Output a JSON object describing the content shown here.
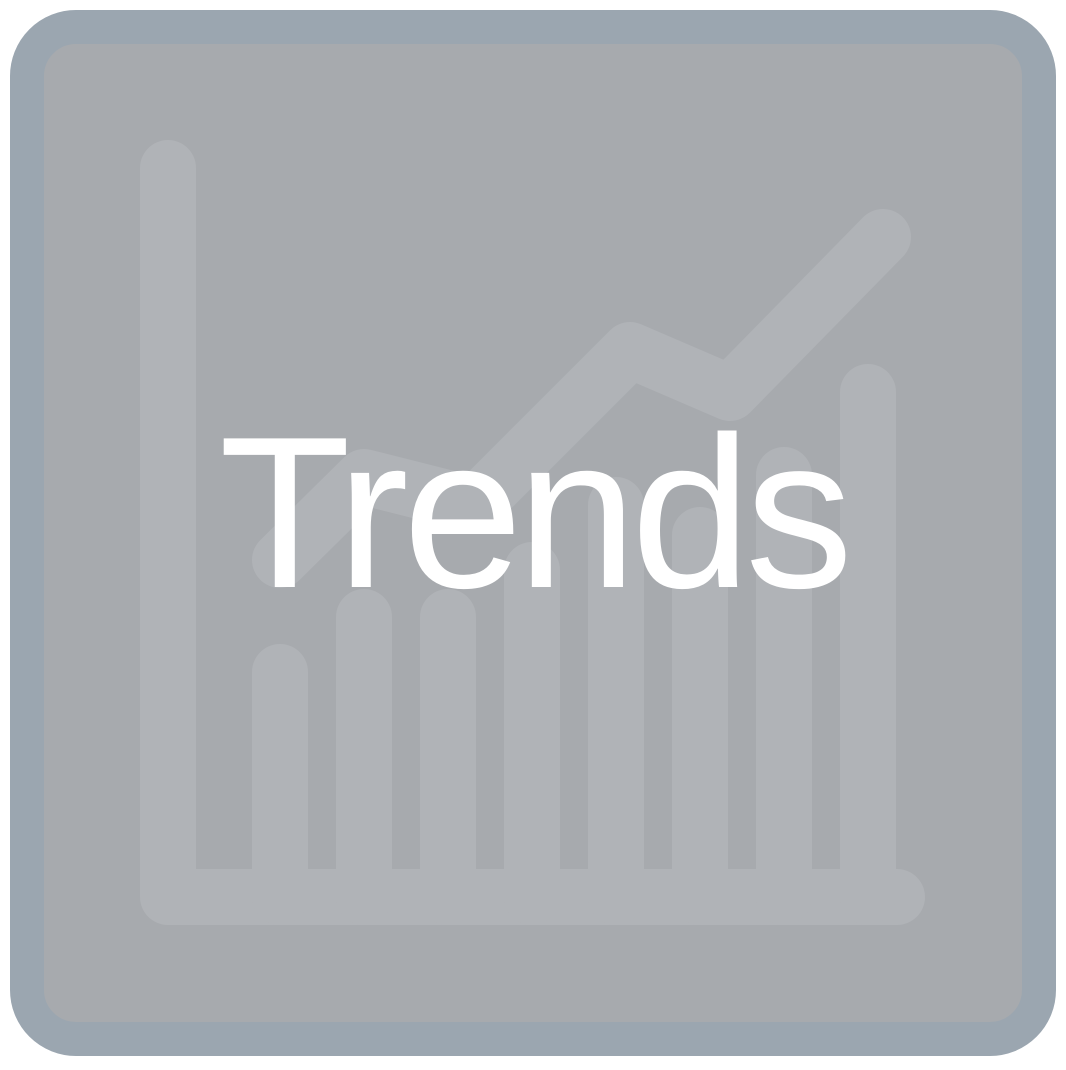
{
  "tile": {
    "label": "Trends",
    "icon": "trend-chart-icon",
    "colors": {
      "frame": "#9ba6b0",
      "fill": "#a7aaae",
      "graphic": "#b0b3b7",
      "text": "#ffffff"
    }
  }
}
